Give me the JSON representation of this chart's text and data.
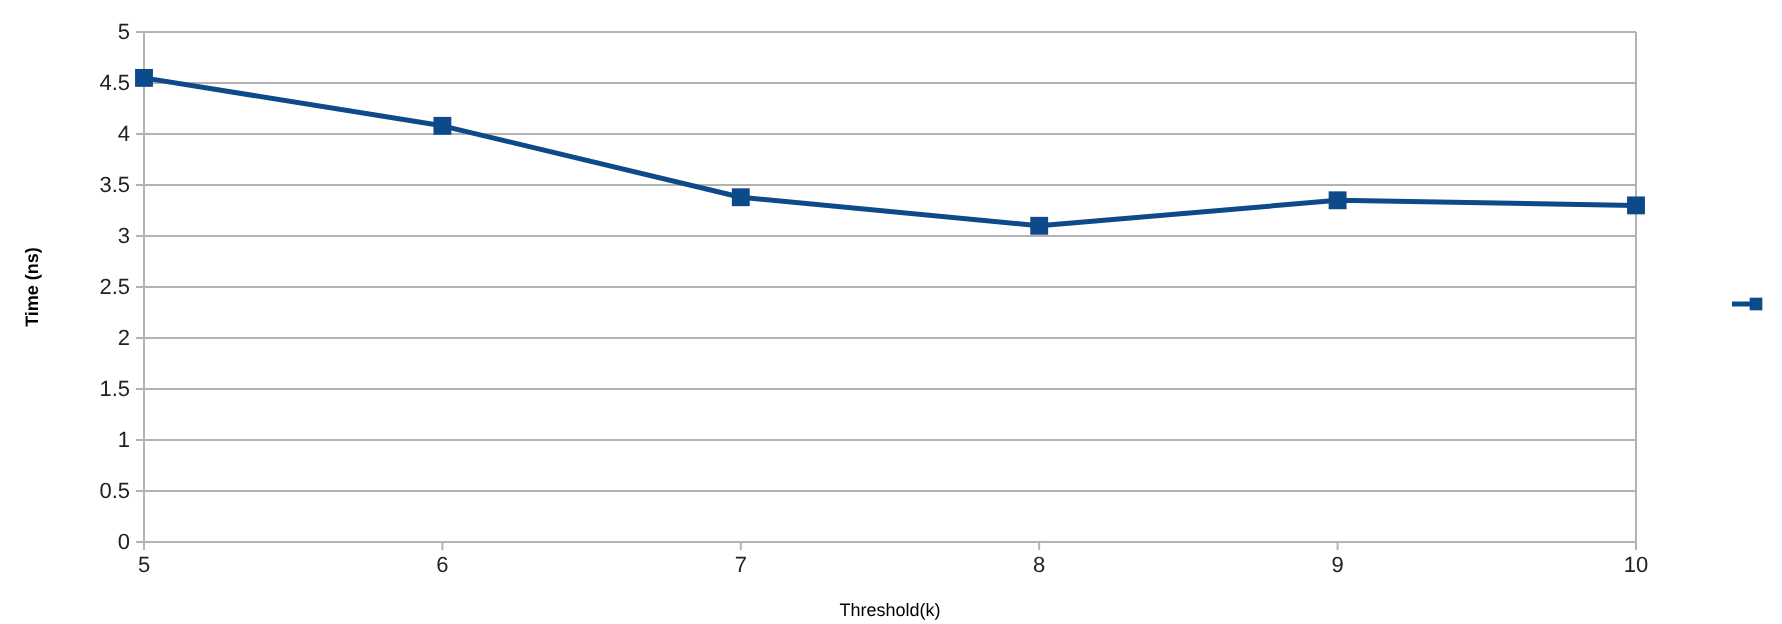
{
  "chart_data": {
    "type": "line",
    "xlabel": "Threshold(k)",
    "ylabel": "Time (ns)",
    "x": [
      5,
      6,
      7,
      8,
      9,
      10
    ],
    "series": [
      {
        "color": "#0d4a8a",
        "values": [
          4.55,
          4.08,
          3.38,
          3.1,
          3.35,
          3.3
        ]
      }
    ],
    "xlim": [
      5,
      10
    ],
    "xticks": [
      5,
      6,
      7,
      8,
      9,
      10
    ],
    "ylim": [
      0,
      5
    ],
    "yticks": [
      0,
      0.5,
      1,
      1.5,
      2,
      2.5,
      3,
      3.5,
      4,
      4.5,
      5
    ],
    "grid": "y",
    "marker": "square",
    "line_style": "solid"
  }
}
